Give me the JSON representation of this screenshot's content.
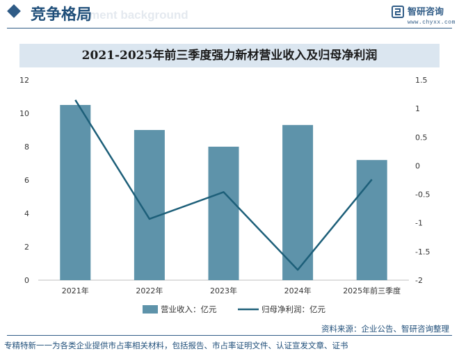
{
  "header": {
    "title": "竞争格局",
    "ghost_text": "ment background",
    "brand_name": "智研咨询",
    "brand_url": "www.chyxx.com"
  },
  "chart_data": {
    "type": "bar+line",
    "title": "2021-2025年前三季度强力新材营业收入及归母净利润",
    "categories": [
      "2021年",
      "2022年",
      "2023年",
      "2024年",
      "2025年前三季度"
    ],
    "series": [
      {
        "name": "营业收入：亿元",
        "type": "bar",
        "axis": "left",
        "color": "#5e93aa",
        "values": [
          10.5,
          9.0,
          8.0,
          9.3,
          7.2
        ]
      },
      {
        "name": "归母净利润：亿元",
        "type": "line",
        "axis": "right",
        "color": "#1d5f79",
        "values": [
          1.15,
          -0.93,
          -0.46,
          -1.82,
          -0.24
        ]
      }
    ],
    "y_left": {
      "min": 0,
      "max": 12,
      "ticks": [
        0,
        2,
        4,
        6,
        8,
        10,
        12
      ]
    },
    "y_right": {
      "min": -2,
      "max": 1.5,
      "ticks": [
        -2,
        -1.5,
        -1,
        -0.5,
        0,
        0.5,
        1,
        1.5
      ]
    },
    "legend_position": "bottom",
    "grid": false
  },
  "footer": {
    "source": "资料来源：企业公告、智研咨询整理",
    "note": "专精特新一一为各类企业提供市占率相关材料，包括报告、市占率证明文件、认证宣发文章、证书"
  }
}
